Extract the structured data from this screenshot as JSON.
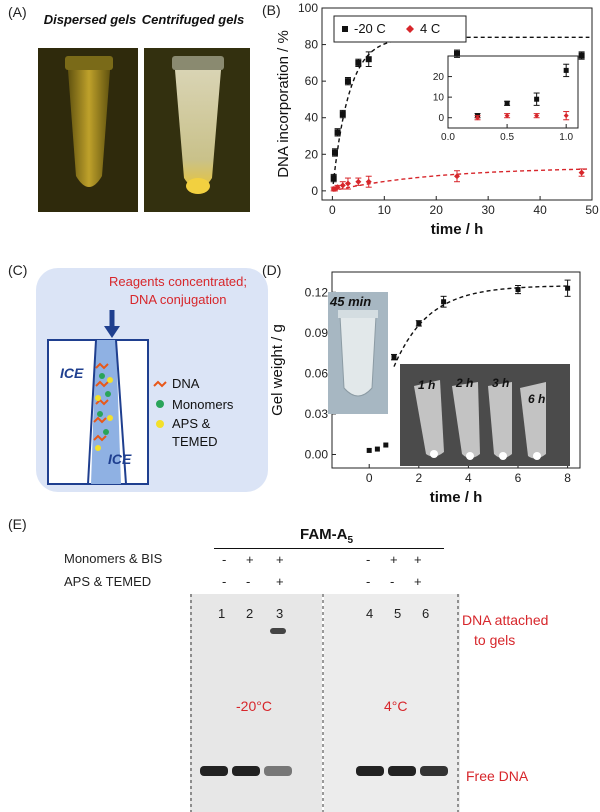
{
  "panels": {
    "A": {
      "label": "(A)",
      "captions": [
        "Dispersed gels",
        "Centrifuged gels"
      ]
    },
    "B": {
      "label": "(B)",
      "legend": [
        "-20  C",
        "4  C"
      ],
      "chart_data": {
        "type": "scatter",
        "xlabel": "time / h",
        "ylabel": "DNA incorporation / %",
        "xlim": [
          -2,
          50
        ],
        "ylim": [
          -5,
          100
        ],
        "xticks": [
          "0",
          "10",
          "20",
          "30",
          "40",
          "50"
        ],
        "yticks": [
          "0",
          "20",
          "40",
          "60",
          "80",
          "100"
        ],
        "series": [
          {
            "name": "-20 C",
            "color": "#111111",
            "x": [
              0.25,
              0.5,
              1,
              2,
              3,
              5,
              7,
              24,
              48
            ],
            "y": [
              7,
              21,
              32,
              42,
              60,
              70,
              72,
              75,
              74
            ],
            "err": [
              2,
              2,
              2,
              2,
              2,
              2,
              4,
              2,
              2
            ]
          },
          {
            "name": "4 C",
            "color": "#d7262b",
            "x": [
              0.25,
              0.5,
              1,
              2,
              3,
              5,
              7,
              24,
              48
            ],
            "y": [
              1,
              1,
              2,
              3,
              4,
              5,
              5,
              8,
              10
            ],
            "err": [
              1,
              1,
              1,
              2,
              3,
              2,
              3,
              3,
              2
            ]
          }
        ],
        "inset": {
          "xlim": [
            0,
            1.1
          ],
          "ylim": [
            -5,
            30
          ],
          "xticks": [
            "0.0",
            "0.5",
            "1.0"
          ],
          "yticks": [
            "0",
            "10",
            "20"
          ],
          "series": [
            {
              "name": "-20 C",
              "color": "#111111",
              "x": [
                0.25,
                0.5,
                0.75,
                1.0
              ],
              "y": [
                1,
                7,
                9,
                23
              ],
              "err": [
                1,
                1,
                3,
                3
              ]
            },
            {
              "name": "4 C",
              "color": "#d7262b",
              "x": [
                0.25,
                0.5,
                0.75,
                1.0
              ],
              "y": [
                0,
                1,
                1,
                1
              ],
              "err": [
                1,
                1,
                1,
                2
              ]
            }
          ]
        }
      }
    },
    "C": {
      "label": "(C)",
      "annotation": [
        "Reagents concentrated;",
        "DNA conjugation"
      ],
      "ice": [
        "ICE",
        "ICE"
      ],
      "legend": [
        "DNA",
        "Monomers",
        "APS &",
        "TEMED"
      ]
    },
    "D": {
      "label": "(D)",
      "photo_label": "45 min",
      "tube_labels": [
        "1 h",
        "2 h",
        "3 h",
        "6 h"
      ],
      "chart_data": {
        "type": "scatter",
        "xlabel": "time / h",
        "ylabel": "Gel weight / g",
        "xlim": [
          -1.5,
          8.5
        ],
        "ylim": [
          -0.01,
          0.135
        ],
        "xticks": [
          "0",
          "2",
          "4",
          "6",
          "8"
        ],
        "yticks": [
          "0.00",
          "0.03",
          "0.06",
          "0.09",
          "0.12"
        ],
        "series": [
          {
            "name": "Gel weight",
            "color": "#111111",
            "x": [
              0,
              0.33,
              0.67,
              1,
              2,
              3,
              6,
              8
            ],
            "y": [
              0.003,
              0.004,
              0.007,
              0.072,
              0.097,
              0.113,
              0.122,
              0.123
            ],
            "err": [
              0,
              0,
              0,
              0.002,
              0.002,
              0.004,
              0.003,
              0.006
            ]
          }
        ]
      }
    },
    "E": {
      "label": "(E)",
      "title": "FAM-A",
      "title_sub": "5",
      "row_labels": [
        "Monomers & BIS",
        "APS & TEMED"
      ],
      "signs_row1": [
        "-",
        "+",
        "+",
        "-",
        "+",
        "+"
      ],
      "signs_row2": [
        "-",
        "-",
        "+",
        "-",
        "-",
        "+"
      ],
      "lanes": [
        "1",
        "2",
        "3",
        "4",
        "5",
        "6"
      ],
      "temps": [
        "-20°C",
        "4°C"
      ],
      "right_labels": [
        "DNA attached",
        "to gels",
        "Free DNA"
      ]
    }
  }
}
